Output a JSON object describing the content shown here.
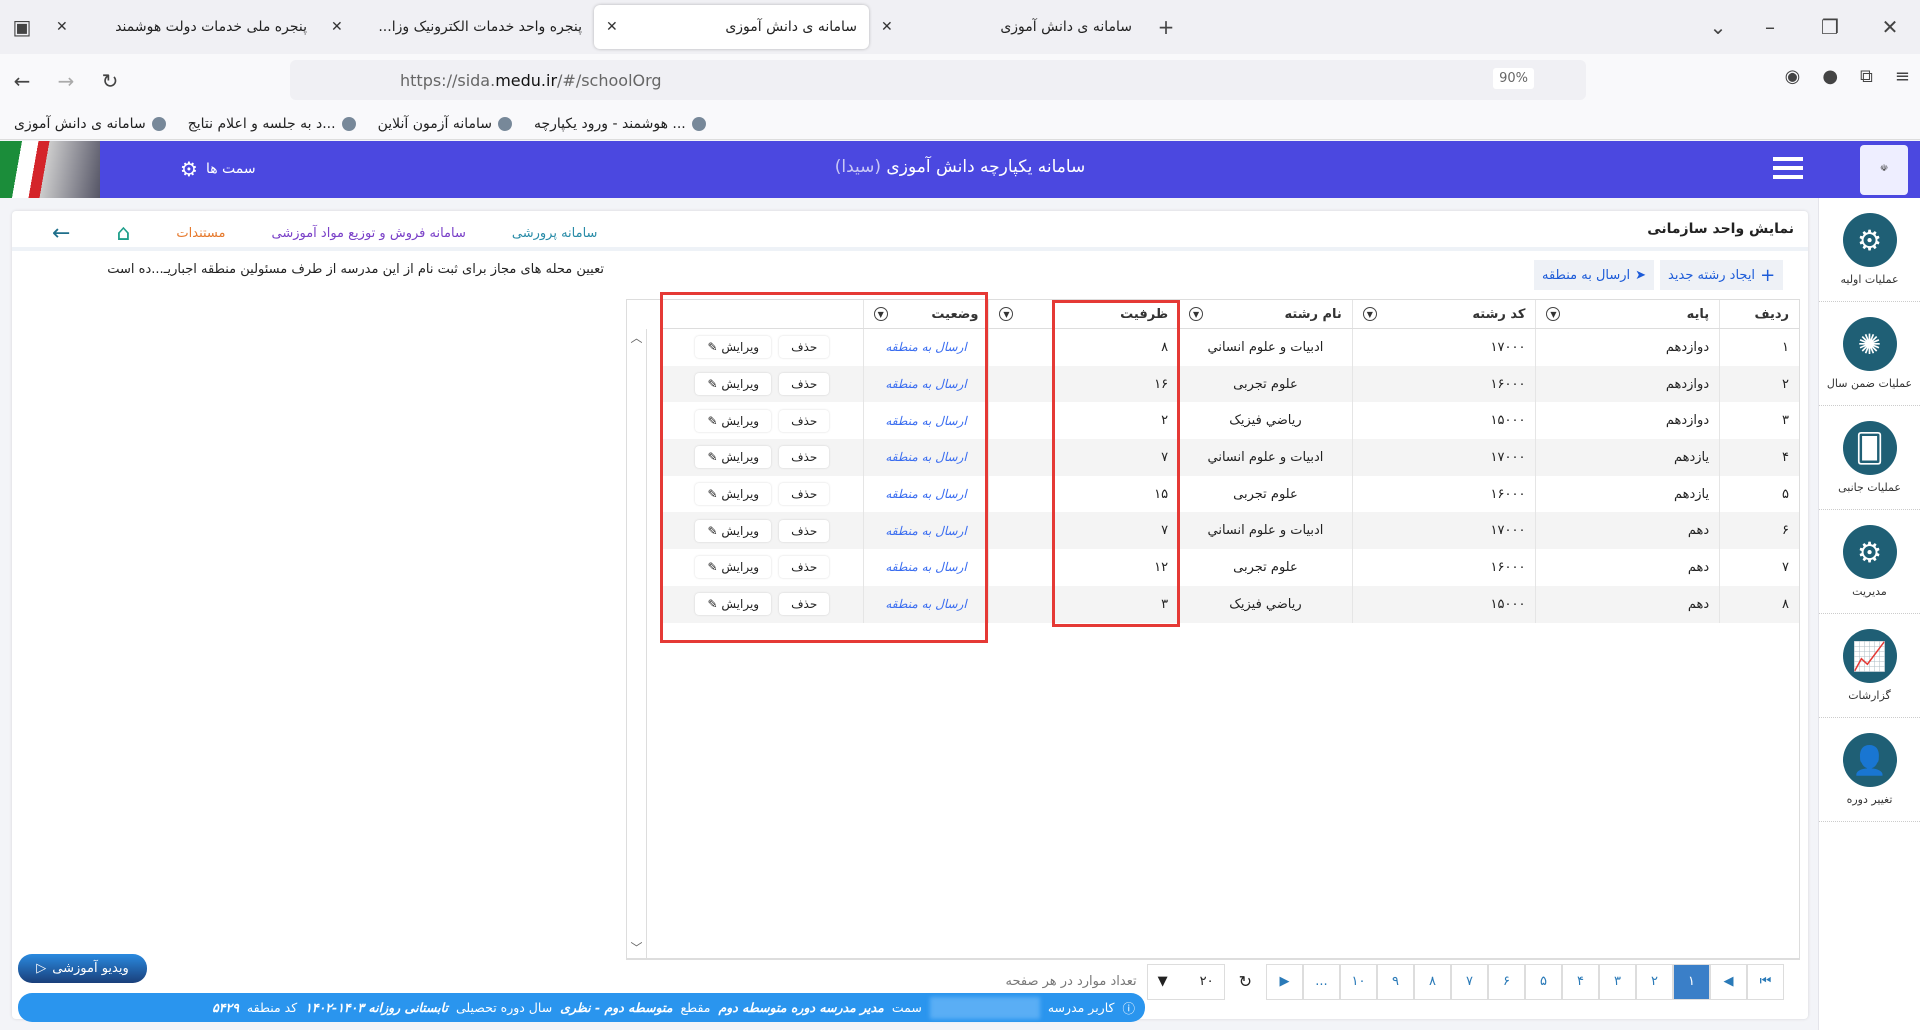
{
  "browser": {
    "tabs": [
      {
        "label": "پنجره ملی خدمات دولت هوشمند",
        "active": false
      },
      {
        "label": "پنجره واحد خدمات الکترونیک وزا...",
        "active": false
      },
      {
        "label": "سامانه ی دانش آموزی",
        "active": true
      },
      {
        "label": "سامانه ی دانش آموزی",
        "active": false
      }
    ],
    "url_prefix": "https://sida.",
    "url_domain": "medu.ir",
    "url_suffix": "/#/schoolOrg",
    "zoom": "90%",
    "bookmarks": [
      "سامانه ی دانش آموزی",
      "...د به جلسه و اعلام نتایج",
      "سامانه آزمون آنلاین",
      "... هوشمند - ورود یکپارچه"
    ]
  },
  "header": {
    "title": "سامانه یکپارچه دانش آموزی",
    "title_suffix": "(سیدا)",
    "roles_label": "سمت ها"
  },
  "sidebar": {
    "items": [
      {
        "label": "عملیات اولیه",
        "icon": "gear-cycle-icon"
      },
      {
        "label": "عملیات ضمن سال",
        "icon": "network-gear-icon"
      },
      {
        "label": "عملیات جانبی",
        "icon": "cards-icon"
      },
      {
        "label": "مدیریت",
        "icon": "person-gear-icon"
      },
      {
        "label": "گزارشات",
        "icon": "chart-icon"
      },
      {
        "label": "تغییر دوره",
        "icon": "user-switch-icon"
      }
    ]
  },
  "page": {
    "title": "نمایش واحد سازمانی",
    "links": {
      "parvaresh": "سامانه پرورشی",
      "sales": "سامانه فروش و توزیع مواد آموزشی",
      "docs": "مستندات"
    },
    "note": "تعیین محله های مجاز برای ثبت نام از این مدرسه از طرف مسئولین منطقه اجباریـ...ده است",
    "toolbar": {
      "new_field": "ایجاد رشته جدید",
      "send_region": "ارسال به منطقه"
    }
  },
  "table": {
    "columns": [
      "ردیف",
      "پایه",
      "کد رشته",
      "نام رشته",
      "ظرفیت",
      "وضعیت",
      ""
    ],
    "rows": [
      [
        "۱",
        "دوازدهم",
        "۱۷۰۰۰",
        "ادبيات و علوم انساني",
        "۸",
        "ارسال به منطقه"
      ],
      [
        "۲",
        "دوازدهم",
        "۱۶۰۰۰",
        "علوم تجربی",
        "۱۶",
        "ارسال به منطقه"
      ],
      [
        "۳",
        "دوازدهم",
        "۱۵۰۰۰",
        "رياضي فيزيک",
        "۲",
        "ارسال به منطقه"
      ],
      [
        "۴",
        "یازدهم",
        "۱۷۰۰۰",
        "ادبيات و علوم انساني",
        "۷",
        "ارسال به منطقه"
      ],
      [
        "۵",
        "یازدهم",
        "۱۶۰۰۰",
        "علوم تجربی",
        "۱۵",
        "ارسال به منطقه"
      ],
      [
        "۶",
        "دهم",
        "۱۷۰۰۰",
        "ادبيات و علوم انساني",
        "۷",
        "ارسال به منطقه"
      ],
      [
        "۷",
        "دهم",
        "۱۶۰۰۰",
        "علوم تجربی",
        "۱۲",
        "ارسال به منطقه"
      ],
      [
        "۸",
        "دهم",
        "۱۵۰۰۰",
        "رياضي فيزيک",
        "۳",
        "ارسال به منطقه"
      ]
    ],
    "delete_label": "حذف",
    "edit_label": "ویرایش"
  },
  "pager": {
    "pages": [
      "۱",
      "۲",
      "۳",
      "۴",
      "۵",
      "۶",
      "۷",
      "۸",
      "۹",
      "۱۰",
      "..."
    ],
    "current": "۱",
    "page_size": "۲۰",
    "page_size_label": "تعداد موارد در هر صفحه"
  },
  "video_label": "ویدیو آموزشی",
  "status": {
    "user_label": "کاربر مدرسه",
    "role_label": "سمت",
    "role": "مدیر مدرسه دوره متوسطه دوم",
    "level_label": "مقطع",
    "level": "متوسطه دوم - نظری",
    "year_label": "سال دوره تحصیلی",
    "year": "تابستانی روزانه ۱۴۰۳-۱۴۰۲",
    "region_label": "کد منطقه",
    "region": "۵۴۲۹"
  },
  "colors": {
    "header": "#4b48e0",
    "accent": "#2a95ee",
    "highlight": "#e53935",
    "link": "#3a6df0"
  }
}
